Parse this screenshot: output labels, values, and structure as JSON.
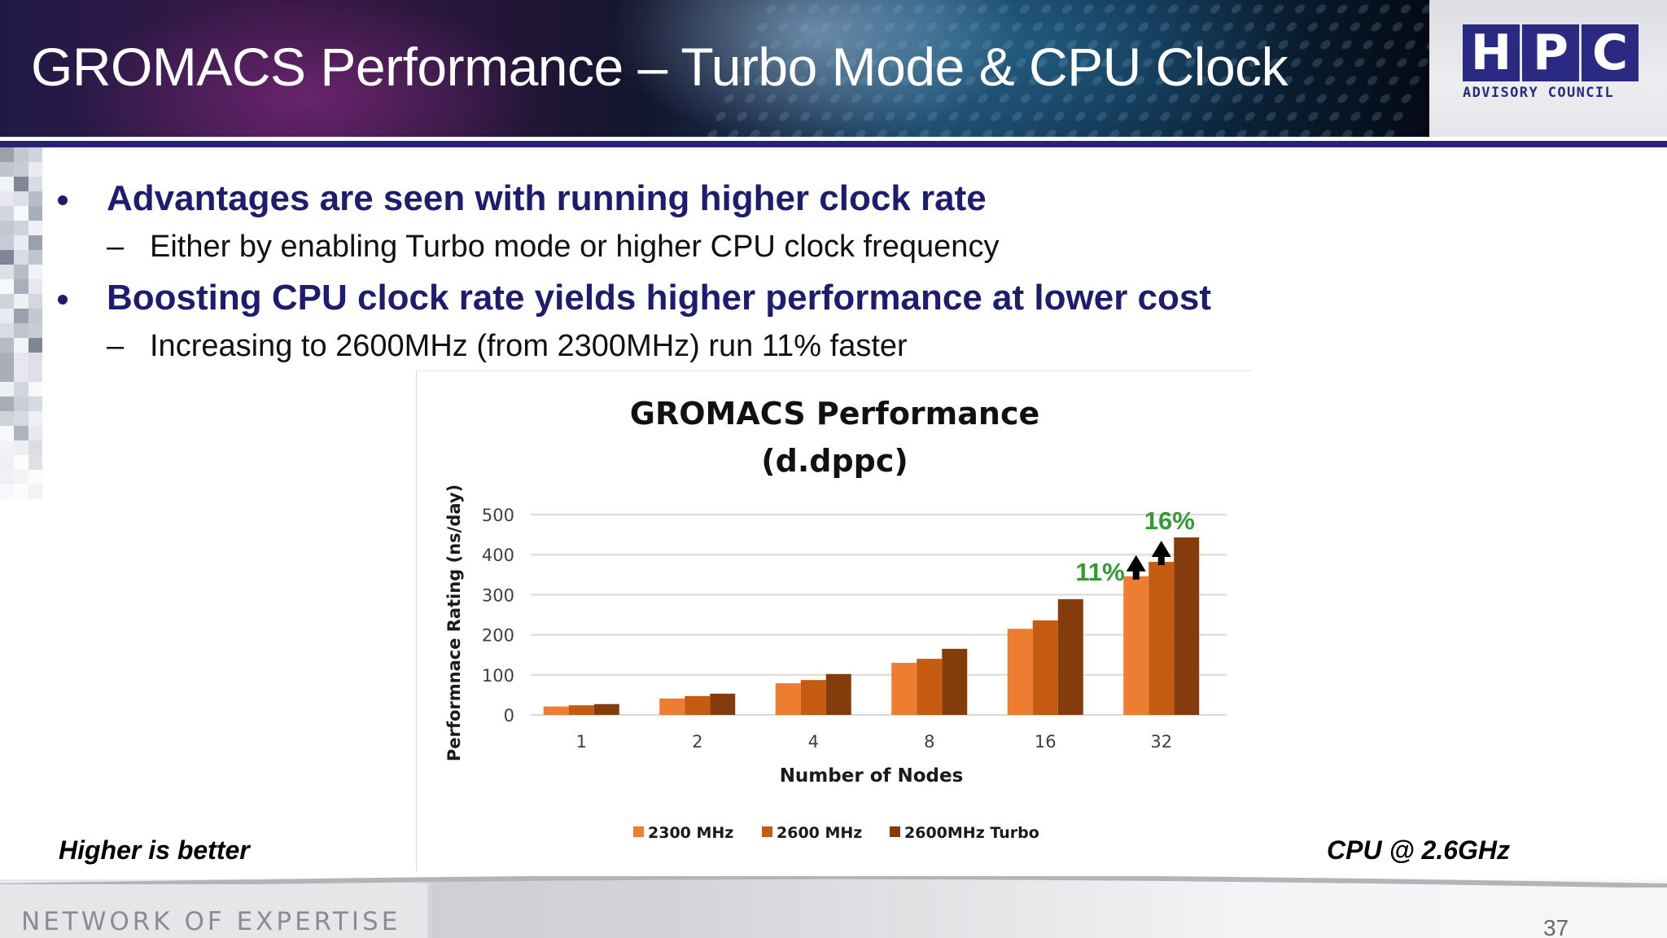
{
  "slide": {
    "title": "GROMACS Performance – Turbo Mode & CPU Clock",
    "page_number": "37",
    "accent_color": "#262473"
  },
  "logo": {
    "letters": [
      "H",
      "P",
      "C"
    ],
    "subtitle": "ADVISORY COUNCIL",
    "color": "#2b2a83"
  },
  "bullets": [
    {
      "text": "Advantages are seen with running higher clock rate",
      "sub": "Either by enabling Turbo mode or higher CPU clock frequency"
    },
    {
      "text": "Boosting CPU clock rate yields higher performance at lower cost",
      "sub": "Increasing to 2600MHz (from 2300MHz) run 11% faster"
    }
  ],
  "footnotes": {
    "left": "Higher is better",
    "right": "CPU @ 2.6GHz"
  },
  "footer": {
    "tagline": "NETWORK OF EXPERTISE"
  },
  "chart_data": {
    "type": "bar",
    "title": "GROMACS Performance",
    "subtitle": "(d.dppc)",
    "xlabel": "Number of Nodes",
    "ylabel": "Performnace Rating (ns/day)",
    "categories": [
      "1",
      "2",
      "4",
      "8",
      "16",
      "32"
    ],
    "series": [
      {
        "name": "2300 MHz",
        "color": "#ed7d31",
        "values": [
          21,
          41,
          79,
          130,
          215,
          346
        ]
      },
      {
        "name": "2600 MHz",
        "color": "#c55a11",
        "values": [
          24,
          47,
          87,
          140,
          236,
          382
        ]
      },
      {
        "name": "2600MHz Turbo",
        "color": "#843c0c",
        "values": [
          27,
          53,
          102,
          165,
          289,
          443
        ]
      }
    ],
    "ylim": [
      0,
      500
    ],
    "yticks": [
      0,
      100,
      200,
      300,
      400,
      500
    ],
    "grid": true,
    "legend_position": "bottom",
    "annotations": [
      {
        "text": "11%",
        "category": "32",
        "series": "2300 MHz",
        "color": "#339933"
      },
      {
        "text": "16%",
        "category": "32",
        "series": "2600 MHz",
        "color": "#339933"
      }
    ]
  }
}
